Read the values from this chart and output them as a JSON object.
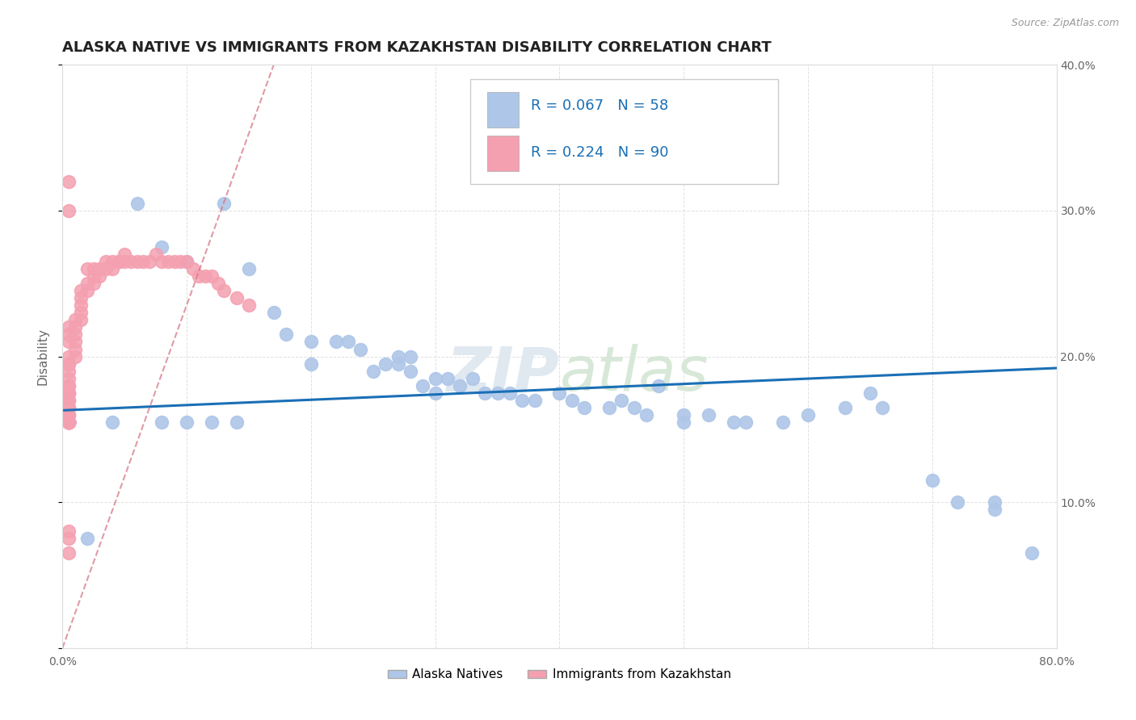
{
  "title": "ALASKA NATIVE VS IMMIGRANTS FROM KAZAKHSTAN DISABILITY CORRELATION CHART",
  "source": "Source: ZipAtlas.com",
  "ylabel": "Disability",
  "watermark_zip": "ZIP",
  "watermark_atlas": "atlas",
  "xlim": [
    0.0,
    0.8
  ],
  "ylim": [
    0.0,
    0.4
  ],
  "legend_entries": [
    {
      "label": "Alaska Natives",
      "color": "#aec6e8",
      "R": 0.067,
      "N": 58
    },
    {
      "label": "Immigrants from Kazakhstan",
      "color": "#f4a0b0",
      "R": 0.224,
      "N": 90
    }
  ],
  "blue_scatter_x": [
    0.02,
    0.06,
    0.08,
    0.1,
    0.13,
    0.15,
    0.17,
    0.18,
    0.2,
    0.2,
    0.22,
    0.23,
    0.24,
    0.25,
    0.26,
    0.27,
    0.27,
    0.28,
    0.28,
    0.29,
    0.3,
    0.3,
    0.31,
    0.32,
    0.33,
    0.34,
    0.35,
    0.36,
    0.37,
    0.38,
    0.4,
    0.41,
    0.42,
    0.44,
    0.45,
    0.46,
    0.47,
    0.48,
    0.5,
    0.5,
    0.52,
    0.54,
    0.55,
    0.58,
    0.6,
    0.63,
    0.65,
    0.66,
    0.7,
    0.72,
    0.75,
    0.75,
    0.78,
    0.04,
    0.08,
    0.1,
    0.12,
    0.14
  ],
  "blue_scatter_y": [
    0.075,
    0.305,
    0.275,
    0.265,
    0.305,
    0.26,
    0.23,
    0.215,
    0.21,
    0.195,
    0.21,
    0.21,
    0.205,
    0.19,
    0.195,
    0.2,
    0.195,
    0.2,
    0.19,
    0.18,
    0.185,
    0.175,
    0.185,
    0.18,
    0.185,
    0.175,
    0.175,
    0.175,
    0.17,
    0.17,
    0.175,
    0.17,
    0.165,
    0.165,
    0.17,
    0.165,
    0.16,
    0.18,
    0.16,
    0.155,
    0.16,
    0.155,
    0.155,
    0.155,
    0.16,
    0.165,
    0.175,
    0.165,
    0.115,
    0.1,
    0.1,
    0.095,
    0.065,
    0.155,
    0.155,
    0.155,
    0.155,
    0.155
  ],
  "pink_scatter_x": [
    0.005,
    0.005,
    0.005,
    0.005,
    0.005,
    0.005,
    0.005,
    0.005,
    0.005,
    0.005,
    0.005,
    0.005,
    0.005,
    0.005,
    0.005,
    0.005,
    0.005,
    0.005,
    0.005,
    0.005,
    0.005,
    0.005,
    0.005,
    0.005,
    0.005,
    0.005,
    0.005,
    0.005,
    0.005,
    0.005,
    0.01,
    0.01,
    0.01,
    0.01,
    0.01,
    0.01,
    0.015,
    0.015,
    0.015,
    0.015,
    0.015,
    0.02,
    0.02,
    0.02,
    0.025,
    0.025,
    0.025,
    0.03,
    0.03,
    0.035,
    0.035,
    0.04,
    0.04,
    0.045,
    0.045,
    0.05,
    0.05,
    0.055,
    0.06,
    0.065,
    0.07,
    0.075,
    0.08,
    0.085,
    0.09,
    0.095,
    0.1,
    0.105,
    0.11,
    0.115,
    0.12,
    0.125,
    0.13,
    0.14,
    0.15,
    0.005,
    0.005,
    0.005,
    0.005,
    0.005,
    0.005,
    0.005,
    0.005,
    0.005,
    0.005,
    0.005,
    0.005,
    0.005,
    0.005
  ],
  "pink_scatter_y": [
    0.155,
    0.155,
    0.16,
    0.155,
    0.155,
    0.155,
    0.155,
    0.155,
    0.16,
    0.155,
    0.155,
    0.155,
    0.155,
    0.165,
    0.165,
    0.17,
    0.17,
    0.175,
    0.175,
    0.175,
    0.18,
    0.18,
    0.185,
    0.19,
    0.195,
    0.195,
    0.2,
    0.21,
    0.215,
    0.22,
    0.2,
    0.205,
    0.21,
    0.215,
    0.22,
    0.225,
    0.225,
    0.23,
    0.235,
    0.24,
    0.245,
    0.245,
    0.25,
    0.26,
    0.25,
    0.255,
    0.26,
    0.255,
    0.26,
    0.26,
    0.265,
    0.26,
    0.265,
    0.265,
    0.265,
    0.265,
    0.27,
    0.265,
    0.265,
    0.265,
    0.265,
    0.27,
    0.265,
    0.265,
    0.265,
    0.265,
    0.265,
    0.26,
    0.255,
    0.255,
    0.255,
    0.25,
    0.245,
    0.24,
    0.235,
    0.08,
    0.065,
    0.075,
    0.155,
    0.155,
    0.155,
    0.155,
    0.155,
    0.155,
    0.155,
    0.155,
    0.32,
    0.3,
    0.155
  ],
  "blue_line_color": "#1a6fb5",
  "pink_line_color": "#d47080",
  "blue_scatter_color": "#aec6e8",
  "pink_scatter_color": "#f4a0b0",
  "bg_color": "#ffffff",
  "grid_color": "#cccccc"
}
